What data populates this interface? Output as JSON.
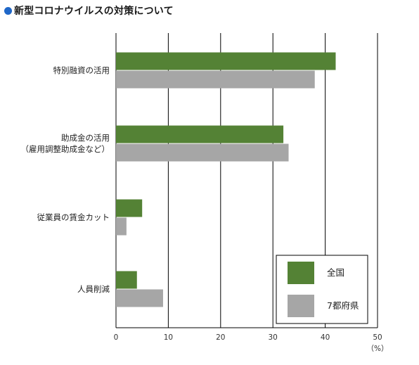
{
  "header": {
    "title": "新型コロナウイルスの対策について"
  },
  "colors": {
    "title_dot": "#1f67c8",
    "nationwide": "#548235",
    "seven_prefectures": "#a6a6a6"
  },
  "chart_data": {
    "type": "bar",
    "orientation": "horizontal",
    "title": "新型コロナウイルスの対策について",
    "categories": [
      [
        "特別融資の活用"
      ],
      [
        "助成金の活用",
        "（雇用調整助成金など）"
      ],
      [
        "従業員の賃金カット"
      ],
      [
        "人員削減"
      ]
    ],
    "series": [
      {
        "name": "全国",
        "color": "#548235",
        "values": [
          42,
          32,
          5,
          4
        ]
      },
      {
        "name": "7都府県",
        "color": "#a6a6a6",
        "values": [
          38,
          33,
          2,
          9
        ]
      }
    ],
    "xlim": [
      0,
      50
    ],
    "xticks": [
      "0",
      "10",
      "20",
      "30",
      "40",
      "50"
    ],
    "xunit": "（%）",
    "grid": true,
    "legend_position": "bottom-right"
  }
}
